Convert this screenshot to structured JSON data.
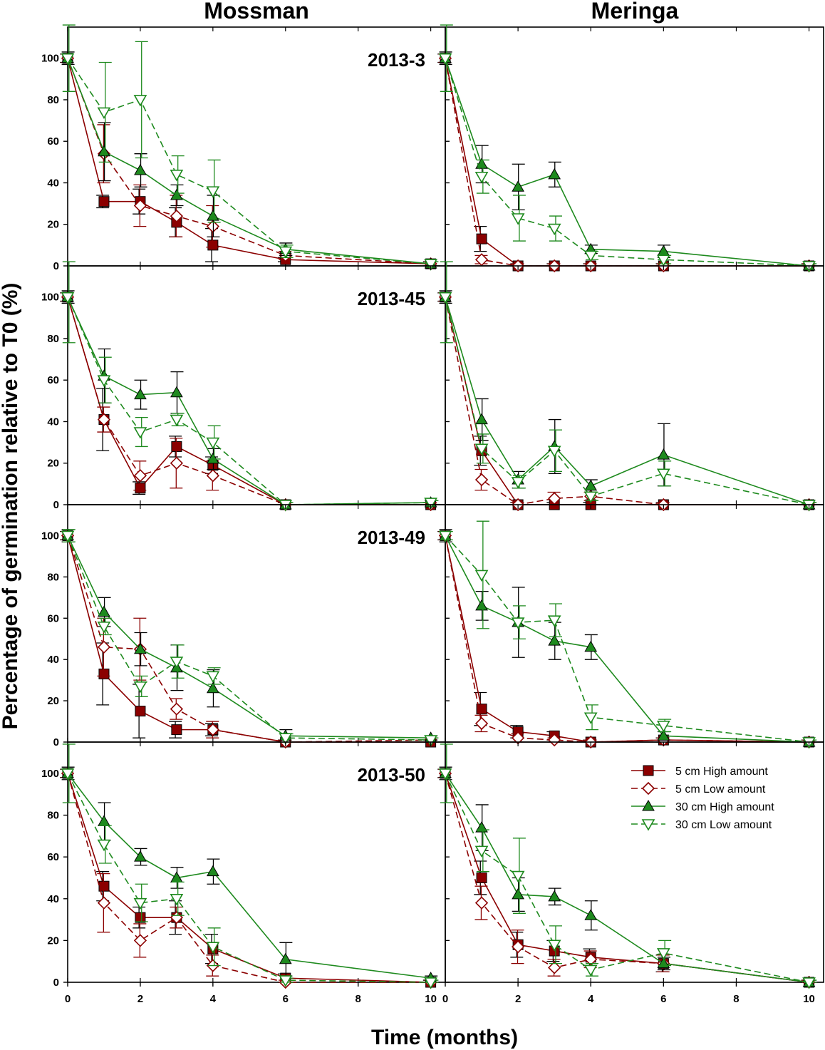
{
  "chart_data": {
    "type": "line",
    "columns": [
      "Mossman",
      "Meringa"
    ],
    "rows": [
      "2013-3",
      "2013-45",
      "2013-49",
      "2013-50"
    ],
    "xlabel": "Time (months)",
    "ylabel": "Percentage of germination relative to T0 (%)",
    "xlim": [
      0,
      10.4
    ],
    "ylim": [
      0,
      115
    ],
    "xticks": [
      0,
      2,
      4,
      6,
      8,
      10
    ],
    "yticks": [
      0,
      20,
      40,
      60,
      80,
      100
    ],
    "x": [
      0,
      1,
      2,
      3,
      4,
      6,
      10
    ],
    "colors": {
      "red": "#8b0000",
      "green": "#1e8a1e",
      "errorbar_black": "#000000"
    },
    "legend": {
      "location": "inside bottom-right panel, top-right",
      "entries": [
        {
          "key": "h5",
          "label": "5 cm High amount",
          "color": "#8b0000",
          "line": "solid",
          "marker": "filled-square"
        },
        {
          "key": "l5",
          "label": "5 cm  Low  amount",
          "color": "#8b0000",
          "line": "dashed",
          "marker": "open-diamond"
        },
        {
          "key": "h30",
          "label": "30 cm High amount",
          "color": "#1e8a1e",
          "line": "solid",
          "marker": "filled-triangle-up"
        },
        {
          "key": "l30",
          "label": "30 cm Low amount",
          "color": "#1e8a1e",
          "line": "dashed",
          "marker": "open-triangle-down"
        }
      ]
    },
    "panels": [
      {
        "row": 0,
        "col": 0,
        "label": "2013-3",
        "series": {
          "h5": {
            "values": [
              100,
              31,
              31,
              21,
              10,
              3,
              1
            ],
            "err": [
              2,
              3,
              6,
              7,
              8,
              1,
              1
            ]
          },
          "l5": {
            "values": [
              100,
              54,
              29,
              24,
              19,
              5,
              1
            ],
            "err": [
              2,
              14,
              10,
              10,
              10,
              2,
              1
            ]
          },
          "h30": {
            "values": [
              100,
              55,
              46,
              34,
              24,
              8,
              1
            ],
            "err": [
              3,
              14,
              8,
              5,
              10,
              3,
              1
            ]
          },
          "l30": {
            "values": [
              100,
              74,
              80,
              44,
              36,
              7,
              1
            ],
            "err": [
              16,
              24,
              28,
              9,
              15,
              3,
              1
            ]
          }
        }
      },
      {
        "row": 0,
        "col": 1,
        "label": "",
        "series": {
          "h5": {
            "values": [
              100,
              13,
              0,
              0,
              0,
              0,
              0
            ],
            "err": [
              2,
              6,
              1,
              1,
              1,
              1,
              1
            ]
          },
          "l5": {
            "values": [
              100,
              3,
              0,
              0,
              0,
              0,
              0
            ],
            "err": [
              2,
              2,
              1,
              1,
              1,
              1,
              1
            ]
          },
          "h30": {
            "values": [
              100,
              49,
              38,
              44,
              8,
              7,
              0
            ],
            "err": [
              3,
              9,
              11,
              6,
              2,
              3,
              1
            ]
          },
          "l30": {
            "values": [
              100,
              43,
              23,
              18,
              5,
              3,
              0
            ],
            "err": [
              16,
              8,
              11,
              6,
              2,
              2,
              1
            ]
          }
        }
      },
      {
        "row": 1,
        "col": 0,
        "label": "2013-45",
        "series": {
          "h5": {
            "values": [
              100,
              41,
              8,
              28,
              19,
              0,
              0
            ],
            "err": [
              2,
              15,
              3,
              5,
              4,
              1,
              1
            ]
          },
          "l5": {
            "values": [
              100,
              41,
              14,
              20,
              14,
              0,
              0
            ],
            "err": [
              2,
              6,
              7,
              12,
              7,
              1,
              1
            ]
          },
          "h30": {
            "values": [
              100,
              62,
              53,
              54,
              22,
              0,
              1
            ],
            "err": [
              3,
              13,
              7,
              10,
              5,
              1,
              1
            ]
          },
          "l30": {
            "values": [
              100,
              60,
              35,
              41,
              30,
              0,
              1
            ],
            "err": [
              22,
              11,
              7,
              3,
              8,
              1,
              1
            ]
          }
        }
      },
      {
        "row": 1,
        "col": 1,
        "label": "",
        "series": {
          "h5": {
            "values": [
              100,
              26,
              0,
              0,
              0,
              0,
              0
            ],
            "err": [
              2,
              7,
              1,
              1,
              1,
              1,
              1
            ]
          },
          "l5": {
            "values": [
              100,
              12,
              0,
              3,
              4,
              0,
              0
            ],
            "err": [
              2,
              5,
              1,
              3,
              2,
              1,
              1
            ]
          },
          "h30": {
            "values": [
              100,
              41,
              12,
              28,
              9,
              24,
              0
            ],
            "err": [
              3,
              10,
              4,
              13,
              3,
              15,
              1
            ]
          },
          "l30": {
            "values": [
              100,
              27,
              11,
              26,
              4,
              15,
              0
            ],
            "err": [
              22,
              7,
              3,
              10,
              2,
              6,
              1
            ]
          }
        }
      },
      {
        "row": 2,
        "col": 0,
        "label": "2013-49",
        "series": {
          "h5": {
            "values": [
              100,
              33,
              15,
              6,
              6,
              0,
              0
            ],
            "err": [
              2,
              15,
              13,
              4,
              3,
              1,
              1
            ]
          },
          "l5": {
            "values": [
              100,
              46,
              45,
              16,
              6,
              0,
              1
            ],
            "err": [
              2,
              14,
              15,
              5,
              4,
              1,
              1
            ]
          },
          "h30": {
            "values": [
              100,
              63,
              45,
              36,
              26,
              3,
              2
            ],
            "err": [
              3,
              7,
              8,
              11,
              9,
              3,
              1
            ]
          },
          "l30": {
            "values": [
              100,
              56,
              27,
              39,
              32,
              2,
              1
            ],
            "err": [
              3,
              4,
              5,
              8,
              4,
              2,
              1
            ]
          }
        }
      },
      {
        "row": 2,
        "col": 1,
        "label": "",
        "series": {
          "h5": {
            "values": [
              100,
              16,
              5,
              3,
              0,
              1,
              0
            ],
            "err": [
              2,
              8,
              3,
              2,
              1,
              1,
              1
            ]
          },
          "l5": {
            "values": [
              100,
              9,
              2,
              1,
              0,
              1,
              0
            ],
            "err": [
              2,
              4,
              2,
              1,
              1,
              1,
              1
            ]
          },
          "h30": {
            "values": [
              100,
              66,
              58,
              49,
              46,
              3,
              0
            ],
            "err": [
              3,
              7,
              17,
              9,
              6,
              2,
              1
            ]
          },
          "l30": {
            "values": [
              100,
              81,
              58,
              59,
              12,
              8,
              0
            ],
            "err": [
              2,
              26,
              8,
              8,
              6,
              3,
              1
            ]
          }
        }
      },
      {
        "row": 3,
        "col": 0,
        "label": "2013-50",
        "series": {
          "h5": {
            "values": [
              100,
              46,
              31,
              31,
              16,
              2,
              0
            ],
            "err": [
              2,
              7,
              5,
              8,
              7,
              2,
              1
            ]
          },
          "l5": {
            "values": [
              100,
              38,
              20,
              31,
              8,
              0,
              0
            ],
            "err": [
              2,
              14,
              8,
              5,
              5,
              1,
              1
            ]
          },
          "h30": {
            "values": [
              100,
              77,
              60,
              50,
              53,
              11,
              2
            ],
            "err": [
              3,
              9,
              4,
              5,
              6,
              8,
              1
            ]
          },
          "l30": {
            "values": [
              100,
              66,
              38,
              40,
              17,
              1,
              0
            ],
            "err": [
              14,
              9,
              9,
              8,
              9,
              1,
              1
            ]
          }
        }
      },
      {
        "row": 3,
        "col": 1,
        "label": "",
        "series": {
          "h5": {
            "values": [
              100,
              50,
              18,
              15,
              12,
              9,
              0
            ],
            "err": [
              2,
              8,
              6,
              5,
              4,
              4,
              1
            ]
          },
          "l5": {
            "values": [
              100,
              38,
              17,
              7,
              11,
              9,
              0
            ],
            "err": [
              2,
              8,
              8,
              4,
              4,
              4,
              1
            ]
          },
          "h30": {
            "values": [
              100,
              74,
              42,
              41,
              32,
              9,
              0
            ],
            "err": [
              3,
              11,
              8,
              4,
              7,
              3,
              1
            ]
          },
          "l30": {
            "values": [
              100,
              63,
              51,
              18,
              6,
              14,
              0
            ],
            "err": [
              14,
              10,
              18,
              9,
              3,
              6,
              1
            ]
          }
        }
      }
    ]
  }
}
